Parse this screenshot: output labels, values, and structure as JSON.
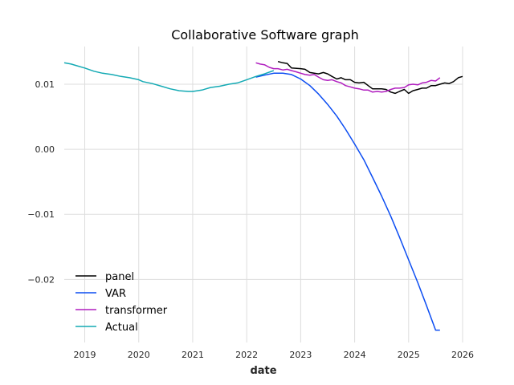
{
  "chart_data": {
    "type": "line",
    "title": "Collaborative Software graph",
    "xlabel": "date",
    "ylabel": "",
    "xlim": [
      2018.62,
      2026.0
    ],
    "ylim": [
      -0.0297,
      0.0158
    ],
    "grid": true,
    "legend_position": "lower-left",
    "x_ticks": [
      {
        "value": 2019,
        "label": "2019"
      },
      {
        "value": 2020,
        "label": "2020"
      },
      {
        "value": 2021,
        "label": "2021"
      },
      {
        "value": 2022,
        "label": "2022"
      },
      {
        "value": 2023,
        "label": "2023"
      },
      {
        "value": 2024,
        "label": "2024"
      },
      {
        "value": 2025,
        "label": "2025"
      },
      {
        "value": 2026,
        "label": "2026"
      }
    ],
    "y_ticks": [
      {
        "value": 0.01,
        "label": "0.01"
      },
      {
        "value": 0.0,
        "label": "0.00"
      },
      {
        "value": -0.01,
        "label": "−0.01"
      },
      {
        "value": -0.02,
        "label": "−0.02"
      }
    ],
    "series": [
      {
        "name": "panel",
        "color": "#000000",
        "points": [
          [
            2022.58,
            0.0135
          ],
          [
            2022.67,
            0.0133
          ],
          [
            2022.75,
            0.0132
          ],
          [
            2022.83,
            0.0125
          ],
          [
            2023.0,
            0.0124
          ],
          [
            2023.08,
            0.0123
          ],
          [
            2023.17,
            0.0118
          ],
          [
            2023.25,
            0.0117
          ],
          [
            2023.33,
            0.0116
          ],
          [
            2023.42,
            0.0118
          ],
          [
            2023.5,
            0.0116
          ],
          [
            2023.58,
            0.0112
          ],
          [
            2023.67,
            0.0108
          ],
          [
            2023.75,
            0.011
          ],
          [
            2023.83,
            0.0107
          ],
          [
            2023.92,
            0.0107
          ],
          [
            2024.0,
            0.0103
          ],
          [
            2024.08,
            0.0102
          ],
          [
            2024.17,
            0.0103
          ],
          [
            2024.25,
            0.0098
          ],
          [
            2024.33,
            0.0093
          ],
          [
            2024.42,
            0.0093
          ],
          [
            2024.5,
            0.0093
          ],
          [
            2024.58,
            0.0092
          ],
          [
            2024.67,
            0.0088
          ],
          [
            2024.75,
            0.0086
          ],
          [
            2024.83,
            0.0089
          ],
          [
            2024.92,
            0.0092
          ],
          [
            2025.0,
            0.0086
          ],
          [
            2025.08,
            0.009
          ],
          [
            2025.17,
            0.0092
          ],
          [
            2025.25,
            0.0094
          ],
          [
            2025.33,
            0.0094
          ],
          [
            2025.42,
            0.0098
          ],
          [
            2025.5,
            0.0098
          ],
          [
            2025.58,
            0.01
          ],
          [
            2025.67,
            0.0102
          ],
          [
            2025.75,
            0.0101
          ],
          [
            2025.83,
            0.0104
          ],
          [
            2025.92,
            0.011
          ],
          [
            2026.0,
            0.0112
          ]
        ]
      },
      {
        "name": "VAR",
        "color": "#0c4df2",
        "points": [
          [
            2022.17,
            0.0111
          ],
          [
            2022.33,
            0.0114
          ],
          [
            2022.5,
            0.0117
          ],
          [
            2022.67,
            0.0117
          ],
          [
            2022.83,
            0.0115
          ],
          [
            2023.0,
            0.0108
          ],
          [
            2023.17,
            0.0098
          ],
          [
            2023.33,
            0.0085
          ],
          [
            2023.5,
            0.0069
          ],
          [
            2023.67,
            0.0051
          ],
          [
            2023.83,
            0.0031
          ],
          [
            2024.0,
            0.0008
          ],
          [
            2024.17,
            -0.0016
          ],
          [
            2024.33,
            -0.0043
          ],
          [
            2024.5,
            -0.0072
          ],
          [
            2024.67,
            -0.0103
          ],
          [
            2024.83,
            -0.0135
          ],
          [
            2025.0,
            -0.017
          ],
          [
            2025.17,
            -0.0205
          ],
          [
            2025.33,
            -0.024
          ],
          [
            2025.5,
            -0.0278
          ],
          [
            2025.58,
            -0.0278
          ]
        ]
      },
      {
        "name": "transformer",
        "color": "#b01ebf",
        "points": [
          [
            2022.17,
            0.0133
          ],
          [
            2022.25,
            0.0131
          ],
          [
            2022.33,
            0.013
          ],
          [
            2022.42,
            0.0126
          ],
          [
            2022.5,
            0.0124
          ],
          [
            2022.58,
            0.0124
          ],
          [
            2022.67,
            0.0122
          ],
          [
            2022.75,
            0.0123
          ],
          [
            2022.83,
            0.0121
          ],
          [
            2022.92,
            0.0119
          ],
          [
            2023.0,
            0.0117
          ],
          [
            2023.08,
            0.0115
          ],
          [
            2023.17,
            0.0114
          ],
          [
            2023.25,
            0.0115
          ],
          [
            2023.33,
            0.0111
          ],
          [
            2023.42,
            0.0107
          ],
          [
            2023.5,
            0.0106
          ],
          [
            2023.58,
            0.0107
          ],
          [
            2023.67,
            0.0104
          ],
          [
            2023.75,
            0.0102
          ],
          [
            2023.83,
            0.0098
          ],
          [
            2023.92,
            0.0096
          ],
          [
            2024.0,
            0.0094
          ],
          [
            2024.08,
            0.0093
          ],
          [
            2024.17,
            0.0091
          ],
          [
            2024.25,
            0.0091
          ],
          [
            2024.33,
            0.0088
          ],
          [
            2024.42,
            0.0089
          ],
          [
            2024.5,
            0.0088
          ],
          [
            2024.58,
            0.0089
          ],
          [
            2024.67,
            0.0092
          ],
          [
            2024.75,
            0.0094
          ],
          [
            2024.83,
            0.0094
          ],
          [
            2024.92,
            0.0095
          ],
          [
            2025.0,
            0.0099
          ],
          [
            2025.08,
            0.01
          ],
          [
            2025.17,
            0.0099
          ],
          [
            2025.25,
            0.0102
          ],
          [
            2025.33,
            0.0103
          ],
          [
            2025.42,
            0.0106
          ],
          [
            2025.5,
            0.0105
          ],
          [
            2025.58,
            0.011
          ]
        ]
      },
      {
        "name": "Actual",
        "color": "#14aab4",
        "points": [
          [
            2018.62,
            0.0133
          ],
          [
            2018.75,
            0.0131
          ],
          [
            2018.83,
            0.0129
          ],
          [
            2019.0,
            0.0125
          ],
          [
            2019.17,
            0.012
          ],
          [
            2019.33,
            0.0117
          ],
          [
            2019.5,
            0.0115
          ],
          [
            2019.67,
            0.0112
          ],
          [
            2019.83,
            0.011
          ],
          [
            2020.0,
            0.0107
          ],
          [
            2020.08,
            0.0104
          ],
          [
            2020.25,
            0.0101
          ],
          [
            2020.42,
            0.0097
          ],
          [
            2020.58,
            0.0093
          ],
          [
            2020.75,
            0.009
          ],
          [
            2020.92,
            0.0089
          ],
          [
            2021.0,
            0.0089
          ],
          [
            2021.17,
            0.0091
          ],
          [
            2021.33,
            0.0095
          ],
          [
            2021.5,
            0.0097
          ],
          [
            2021.67,
            0.01
          ],
          [
            2021.83,
            0.0102
          ],
          [
            2022.0,
            0.0107
          ],
          [
            2022.17,
            0.0112
          ],
          [
            2022.33,
            0.0116
          ],
          [
            2022.5,
            0.0121
          ]
        ]
      }
    ]
  }
}
